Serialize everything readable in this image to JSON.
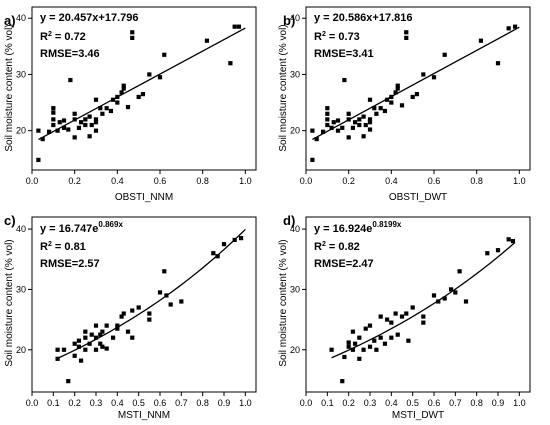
{
  "chart_data": [
    {
      "type": "scatter",
      "panel_label": "a)",
      "equation": "y = 20.457x+17.796",
      "r2_label": "R",
      "r2_value": " = 0.72",
      "rmse_label": "RMSE=3.46",
      "xlabel": "OBSTI_NNM",
      "ylabel": "Soil moisture content (% vol)",
      "xlim": [
        0,
        1.05
      ],
      "ylim": [
        13,
        42
      ],
      "xticks": [
        0.0,
        0.2,
        0.4,
        0.6,
        0.8,
        1.0
      ],
      "yticks": [
        20,
        30,
        40
      ],
      "fit": {
        "model": "linear",
        "a": 20.457,
        "b": 17.796
      },
      "points": [
        [
          0.03,
          14.8
        ],
        [
          0.03,
          20.0
        ],
        [
          0.05,
          18.5
        ],
        [
          0.08,
          19.8
        ],
        [
          0.1,
          21.0
        ],
        [
          0.1,
          22.0
        ],
        [
          0.1,
          23.2
        ],
        [
          0.1,
          24.0
        ],
        [
          0.12,
          20.0
        ],
        [
          0.13,
          21.5
        ],
        [
          0.15,
          20.5
        ],
        [
          0.15,
          21.8
        ],
        [
          0.17,
          20.2
        ],
        [
          0.18,
          29.0
        ],
        [
          0.2,
          18.8
        ],
        [
          0.2,
          22.0
        ],
        [
          0.2,
          23.0
        ],
        [
          0.22,
          20.5
        ],
        [
          0.23,
          21.5
        ],
        [
          0.25,
          21.0
        ],
        [
          0.25,
          22.0
        ],
        [
          0.27,
          19.0
        ],
        [
          0.27,
          22.5
        ],
        [
          0.28,
          21.0
        ],
        [
          0.3,
          20.0
        ],
        [
          0.3,
          21.5
        ],
        [
          0.3,
          22.0
        ],
        [
          0.3,
          25.5
        ],
        [
          0.32,
          24.0
        ],
        [
          0.33,
          23.0
        ],
        [
          0.35,
          24.0
        ],
        [
          0.37,
          23.5
        ],
        [
          0.38,
          25.5
        ],
        [
          0.4,
          26.0
        ],
        [
          0.4,
          25.0
        ],
        [
          0.42,
          26.8
        ],
        [
          0.43,
          27.5
        ],
        [
          0.43,
          28.0
        ],
        [
          0.45,
          24.2
        ],
        [
          0.47,
          37.5
        ],
        [
          0.47,
          36.5
        ],
        [
          0.5,
          26.0
        ],
        [
          0.52,
          26.5
        ],
        [
          0.55,
          30.0
        ],
        [
          0.6,
          29.5
        ],
        [
          0.62,
          33.5
        ],
        [
          0.82,
          36.0
        ],
        [
          0.93,
          32.0
        ],
        [
          0.95,
          38.5
        ],
        [
          0.97,
          38.5
        ]
      ]
    },
    {
      "type": "scatter",
      "panel_label": "b)",
      "equation": "y = 20.586x+17.816",
      "r2_label": "R",
      "r2_value": " = 0.73",
      "rmse_label": "RMSE=3.41",
      "xlabel": "OBSTI_DWT",
      "ylabel": "Soil moisture content (% vol)",
      "xlim": [
        0,
        1.05
      ],
      "ylim": [
        13,
        42
      ],
      "xticks": [
        0.0,
        0.2,
        0.4,
        0.6,
        0.8,
        1.0
      ],
      "yticks": [
        20,
        30,
        40
      ],
      "fit": {
        "model": "linear",
        "a": 20.586,
        "b": 17.816
      },
      "points": [
        [
          0.03,
          14.8
        ],
        [
          0.03,
          20.0
        ],
        [
          0.05,
          18.5
        ],
        [
          0.08,
          19.8
        ],
        [
          0.1,
          21.0
        ],
        [
          0.1,
          22.0
        ],
        [
          0.1,
          23.0
        ],
        [
          0.1,
          24.0
        ],
        [
          0.12,
          20.5
        ],
        [
          0.13,
          21.5
        ],
        [
          0.15,
          20.0
        ],
        [
          0.15,
          21.8
        ],
        [
          0.17,
          20.5
        ],
        [
          0.18,
          29.0
        ],
        [
          0.2,
          18.8
        ],
        [
          0.2,
          22.0
        ],
        [
          0.2,
          23.0
        ],
        [
          0.22,
          20.5
        ],
        [
          0.23,
          21.5
        ],
        [
          0.25,
          21.0
        ],
        [
          0.25,
          22.0
        ],
        [
          0.27,
          19.0
        ],
        [
          0.27,
          22.5
        ],
        [
          0.28,
          21.0
        ],
        [
          0.3,
          20.2
        ],
        [
          0.3,
          21.5
        ],
        [
          0.3,
          22.0
        ],
        [
          0.3,
          25.5
        ],
        [
          0.32,
          24.0
        ],
        [
          0.33,
          23.0
        ],
        [
          0.35,
          24.0
        ],
        [
          0.37,
          23.5
        ],
        [
          0.38,
          25.5
        ],
        [
          0.4,
          26.0
        ],
        [
          0.4,
          25.0
        ],
        [
          0.42,
          26.8
        ],
        [
          0.43,
          27.5
        ],
        [
          0.43,
          28.0
        ],
        [
          0.45,
          24.5
        ],
        [
          0.47,
          37.5
        ],
        [
          0.47,
          36.5
        ],
        [
          0.5,
          26.0
        ],
        [
          0.52,
          26.5
        ],
        [
          0.55,
          30.0
        ],
        [
          0.6,
          29.5
        ],
        [
          0.65,
          33.5
        ],
        [
          0.82,
          36.0
        ],
        [
          0.9,
          32.0
        ],
        [
          0.95,
          38.2
        ],
        [
          0.98,
          38.5
        ]
      ]
    },
    {
      "type": "scatter",
      "panel_label": "c)",
      "equation_base": "y = 16.747e",
      "equation_exp": "0.869x",
      "r2_label": "R",
      "r2_value": " = 0.81",
      "rmse_label": "RMSE=2.57",
      "xlabel": "MSTI_NNM",
      "ylabel": "Soil moisture content (% vol)",
      "xlim": [
        0,
        1.05
      ],
      "ylim": [
        13,
        42
      ],
      "xticks": [
        0.0,
        0.1,
        0.2,
        0.3,
        0.4,
        0.5,
        0.6,
        0.7,
        0.8,
        0.9,
        1.0
      ],
      "yticks": [
        20,
        30,
        40
      ],
      "fit": {
        "model": "exponential",
        "a": 16.747,
        "b": 0.869,
        "x_range": [
          0.12,
          1.0
        ]
      },
      "points": [
        [
          0.12,
          18.5
        ],
        [
          0.12,
          20.0
        ],
        [
          0.15,
          20.0
        ],
        [
          0.17,
          14.8
        ],
        [
          0.2,
          19.0
        ],
        [
          0.2,
          21.0
        ],
        [
          0.22,
          20.5
        ],
        [
          0.22,
          21.5
        ],
        [
          0.23,
          18.2
        ],
        [
          0.25,
          20.0
        ],
        [
          0.25,
          22.0
        ],
        [
          0.25,
          23.0
        ],
        [
          0.27,
          21.0
        ],
        [
          0.28,
          22.5
        ],
        [
          0.3,
          20.0
        ],
        [
          0.3,
          24.0
        ],
        [
          0.3,
          22.0
        ],
        [
          0.32,
          21.0
        ],
        [
          0.32,
          22.5
        ],
        [
          0.33,
          20.5
        ],
        [
          0.33,
          23.0
        ],
        [
          0.35,
          24.0
        ],
        [
          0.35,
          20.2
        ],
        [
          0.38,
          22.0
        ],
        [
          0.4,
          23.5
        ],
        [
          0.4,
          24.0
        ],
        [
          0.42,
          25.5
        ],
        [
          0.43,
          26.0
        ],
        [
          0.45,
          23.0
        ],
        [
          0.47,
          26.5
        ],
        [
          0.47,
          22.0
        ],
        [
          0.5,
          27.0
        ],
        [
          0.55,
          25.0
        ],
        [
          0.55,
          26.0
        ],
        [
          0.6,
          29.5
        ],
        [
          0.62,
          33.0
        ],
        [
          0.63,
          29.0
        ],
        [
          0.65,
          27.5
        ],
        [
          0.7,
          28.0
        ],
        [
          0.85,
          36.0
        ],
        [
          0.87,
          35.5
        ],
        [
          0.9,
          37.5
        ],
        [
          0.95,
          38.2
        ],
        [
          0.98,
          38.5
        ]
      ]
    },
    {
      "type": "scatter",
      "panel_label": "d)",
      "equation_base": "y = 16.924e",
      "equation_exp": "0.8199x",
      "r2_label": "R",
      "r2_value": " = 0.82",
      "rmse_label": "RMSE=2.47",
      "xlabel": "MSTI_DWT",
      "ylabel": "Soil moisture content (% vol)",
      "xlim": [
        0,
        1.05
      ],
      "ylim": [
        13,
        42
      ],
      "xticks": [
        0.0,
        0.1,
        0.2,
        0.3,
        0.4,
        0.5,
        0.6,
        0.7,
        0.8,
        0.9,
        1.0
      ],
      "yticks": [
        20,
        30,
        40
      ],
      "fit": {
        "model": "exponential",
        "a": 16.924,
        "b": 0.8199,
        "x_range": [
          0.12,
          0.98
        ]
      },
      "points": [
        [
          0.12,
          20.0
        ],
        [
          0.17,
          14.8
        ],
        [
          0.18,
          18.8
        ],
        [
          0.2,
          20.5
        ],
        [
          0.2,
          21.2
        ],
        [
          0.22,
          20.0
        ],
        [
          0.22,
          23.0
        ],
        [
          0.23,
          21.0
        ],
        [
          0.25,
          18.5
        ],
        [
          0.25,
          22.0
        ],
        [
          0.27,
          20.0
        ],
        [
          0.28,
          23.5
        ],
        [
          0.3,
          20.5
        ],
        [
          0.3,
          24.0
        ],
        [
          0.32,
          21.5
        ],
        [
          0.33,
          20.0
        ],
        [
          0.35,
          25.5
        ],
        [
          0.35,
          22.0
        ],
        [
          0.37,
          21.0
        ],
        [
          0.38,
          25.0
        ],
        [
          0.4,
          24.5
        ],
        [
          0.4,
          22.0
        ],
        [
          0.42,
          26.0
        ],
        [
          0.43,
          22.5
        ],
        [
          0.45,
          25.5
        ],
        [
          0.47,
          26.0
        ],
        [
          0.48,
          21.5
        ],
        [
          0.5,
          27.0
        ],
        [
          0.55,
          25.5
        ],
        [
          0.55,
          24.5
        ],
        [
          0.6,
          29.0
        ],
        [
          0.62,
          28.0
        ],
        [
          0.65,
          28.5
        ],
        [
          0.68,
          30.0
        ],
        [
          0.7,
          29.5
        ],
        [
          0.72,
          33.0
        ],
        [
          0.75,
          28.0
        ],
        [
          0.85,
          36.0
        ],
        [
          0.9,
          36.5
        ],
        [
          0.95,
          38.3
        ],
        [
          0.97,
          38.0
        ]
      ]
    }
  ]
}
